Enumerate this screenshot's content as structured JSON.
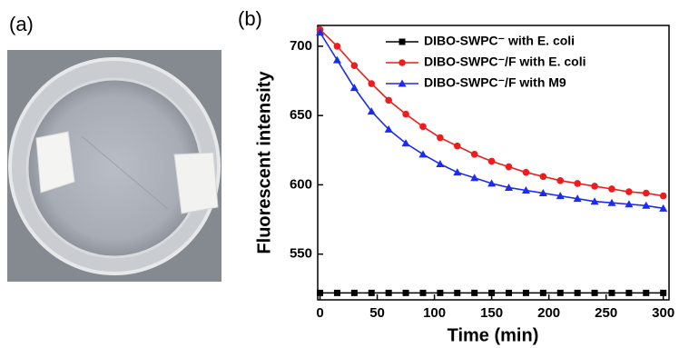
{
  "photo": {
    "label": "(a)"
  },
  "chart_data": {
    "type": "line",
    "panel_label": "(b)",
    "xlabel": "Time (min)",
    "ylabel": "Fluorescent intensity",
    "x": [
      0,
      15,
      30,
      45,
      60,
      75,
      90,
      105,
      120,
      135,
      150,
      165,
      180,
      195,
      210,
      225,
      240,
      255,
      270,
      285,
      300
    ],
    "series": [
      {
        "name": "DIBO-SWPC⁻ with E. coli",
        "color": "#000000",
        "marker": "square",
        "values": [
          522,
          522,
          522,
          522,
          522,
          522,
          522,
          522,
          522,
          522,
          522,
          522,
          522,
          522,
          522,
          522,
          522,
          522,
          522,
          522,
          522
        ]
      },
      {
        "name": "DIBO-SWPC⁻/F with E. coli",
        "color": "#ee1c1c",
        "marker": "circle",
        "values": [
          712,
          700,
          686,
          673,
          661,
          651,
          642,
          634,
          628,
          622,
          617,
          613,
          609,
          606,
          603,
          601,
          599,
          597,
          595,
          594,
          592
        ]
      },
      {
        "name": "DIBO-SWPC⁻/F with M9",
        "color": "#1c2cee",
        "marker": "triangle",
        "values": [
          710,
          690,
          670,
          653,
          640,
          630,
          622,
          615,
          609,
          605,
          601,
          598,
          596,
          594,
          592,
          590,
          588,
          587,
          586,
          585,
          583
        ]
      }
    ],
    "xlim": [
      -2,
      305
    ],
    "xticks": [
      0,
      50,
      100,
      150,
      200,
      250,
      300
    ],
    "ylim": [
      517,
      715
    ],
    "yticks": [
      550,
      600,
      650,
      700
    ],
    "legend": "upper right"
  }
}
